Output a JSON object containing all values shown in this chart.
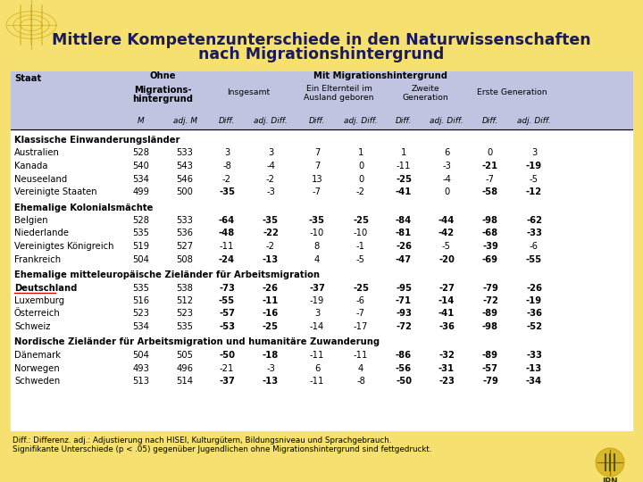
{
  "title_line1": "Mittlere Kompetenzunterschiede in den Naturwissenschaften",
  "title_line2": "nach Migrationshintergrund",
  "bg_color": "#f5e070",
  "table_bg": "#ffffff",
  "header_bg": "#c0c4e0",
  "footnote1": "Diff.: Differenz. adj.: Adjustierung nach HISEI, Kulturgütern, Bildungsniveau und Sprachgebrauch.",
  "footnote2": "Signifikante Unterschiede (p < .05) gegenüber Jugendlichen ohne Migrationshintergrund sind fettgedruckt.",
  "groups": [
    {
      "name": "Klassische Einwanderungsländer",
      "rows": [
        [
          "Australien",
          "528",
          "533",
          "3",
          "3",
          "7",
          "1",
          "1",
          "6",
          "0",
          "3"
        ],
        [
          "Kanada",
          "540",
          "543",
          "-8",
          "-4",
          "7",
          "0",
          "-11",
          "-3",
          "-21",
          "-19"
        ],
        [
          "Neuseeland",
          "534",
          "546",
          "-2",
          "-2",
          "13",
          "0",
          "-25",
          "-4",
          "-7",
          "-5"
        ],
        [
          "Vereinigte Staaten",
          "499",
          "500",
          "-35",
          "-3",
          "-7",
          "-2",
          "-41",
          "0",
          "-58",
          "-12"
        ]
      ],
      "bold": [
        [
          false,
          false,
          false,
          false,
          false,
          false,
          false,
          false,
          false,
          false,
          false
        ],
        [
          false,
          false,
          false,
          false,
          false,
          false,
          false,
          false,
          false,
          true,
          true
        ],
        [
          false,
          false,
          false,
          false,
          false,
          false,
          false,
          true,
          false,
          false,
          false
        ],
        [
          false,
          false,
          false,
          true,
          false,
          false,
          false,
          true,
          false,
          true,
          true
        ]
      ],
      "underline_row": -1
    },
    {
      "name": "Ehemalige Kolonialsmächte",
      "rows": [
        [
          "Belgien",
          "528",
          "533",
          "-64",
          "-35",
          "-35",
          "-25",
          "-84",
          "-44",
          "-98",
          "-62"
        ],
        [
          "Niederlande",
          "535",
          "536",
          "-48",
          "-22",
          "-10",
          "-10",
          "-81",
          "-42",
          "-68",
          "-33"
        ],
        [
          "Vereinigtes Königreich",
          "519",
          "527",
          "-11",
          "-2",
          "8",
          "-1",
          "-26",
          "-5",
          "-39",
          "-6"
        ],
        [
          "Frankreich",
          "504",
          "508",
          "-24",
          "-13",
          "4",
          "-5",
          "-47",
          "-20",
          "-69",
          "-55"
        ]
      ],
      "bold": [
        [
          false,
          false,
          false,
          true,
          true,
          true,
          true,
          true,
          true,
          true,
          true
        ],
        [
          false,
          false,
          false,
          true,
          true,
          false,
          false,
          true,
          true,
          true,
          true
        ],
        [
          false,
          false,
          false,
          false,
          false,
          false,
          false,
          true,
          false,
          true,
          false
        ],
        [
          false,
          false,
          false,
          true,
          true,
          false,
          false,
          true,
          true,
          true,
          true
        ]
      ],
      "underline_row": -1
    },
    {
      "name": "Ehemalige mitteleuropäische Zieländer für Arbeitsmigration",
      "rows": [
        [
          "Deutschland",
          "535",
          "538",
          "-73",
          "-26",
          "-37",
          "-25",
          "-95",
          "-27",
          "-79",
          "-26"
        ],
        [
          "Luxemburg",
          "516",
          "512",
          "-55",
          "-11",
          "-19",
          "-6",
          "-71",
          "-14",
          "-72",
          "-19"
        ],
        [
          "Österreich",
          "523",
          "523",
          "-57",
          "-16",
          "3",
          "-7",
          "-93",
          "-41",
          "-89",
          "-36"
        ],
        [
          "Schweiz",
          "534",
          "535",
          "-53",
          "-25",
          "-14",
          "-17",
          "-72",
          "-36",
          "-98",
          "-52"
        ]
      ],
      "bold": [
        [
          true,
          false,
          false,
          true,
          true,
          true,
          true,
          true,
          true,
          true,
          true
        ],
        [
          false,
          false,
          false,
          true,
          true,
          false,
          false,
          true,
          true,
          true,
          true
        ],
        [
          false,
          false,
          false,
          true,
          true,
          false,
          false,
          true,
          true,
          true,
          true
        ],
        [
          false,
          false,
          false,
          true,
          true,
          false,
          false,
          true,
          true,
          true,
          true
        ]
      ],
      "underline_row": 0
    },
    {
      "name": "Nordische Zieländer für Arbeitsmigration und humanitäre Zuwanderung",
      "rows": [
        [
          "Dänemark",
          "504",
          "505",
          "-50",
          "-18",
          "-11",
          "-11",
          "-86",
          "-32",
          "-89",
          "-33"
        ],
        [
          "Norwegen",
          "493",
          "496",
          "-21",
          "-3",
          "6",
          "4",
          "-56",
          "-31",
          "-57",
          "-13"
        ],
        [
          "Schweden",
          "513",
          "514",
          "-37",
          "-13",
          "-11",
          "-8",
          "-50",
          "-23",
          "-79",
          "-34"
        ]
      ],
      "bold": [
        [
          false,
          false,
          false,
          true,
          true,
          false,
          false,
          true,
          true,
          true,
          true
        ],
        [
          false,
          false,
          false,
          false,
          false,
          false,
          false,
          true,
          true,
          true,
          true
        ],
        [
          false,
          false,
          false,
          true,
          true,
          false,
          false,
          true,
          true,
          true,
          true
        ]
      ],
      "underline_row": -1
    }
  ]
}
